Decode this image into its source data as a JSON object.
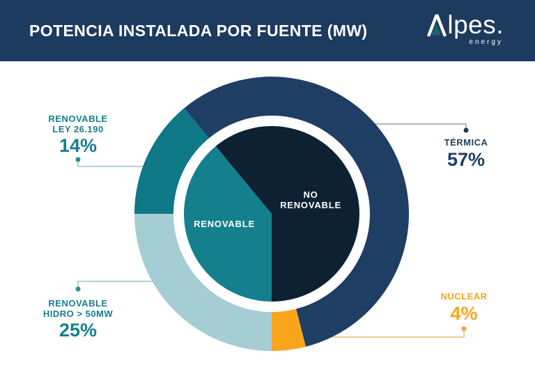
{
  "header": {
    "title": "POTENCIA INSTALADA POR FUENTE (MW)",
    "logo": {
      "brand": "Alpes.",
      "brand_rest": "lpes.",
      "tagline": "energy"
    }
  },
  "chart_data": {
    "type": "pie",
    "variant": "donut_with_inner_pie",
    "title": "POTENCIA INSTALADA POR FUENTE (MW)",
    "start_angle_deg": 180,
    "direction": "clockwise",
    "outer_ring": [
      {
        "label": "RENOVABLE HIDRO > 50MW",
        "value": 25,
        "color": "#a5cdd4"
      },
      {
        "label": "RENOVABLE LEY 26.190",
        "value": 14,
        "color": "#0e7887"
      },
      {
        "label": "TÉRMICA",
        "value": 57,
        "color": "#1e3e64"
      },
      {
        "label": "NUCLEAR",
        "value": 4,
        "color": "#f9a51c"
      }
    ],
    "inner_pie": [
      {
        "label": "RENOVABLE",
        "value": 39,
        "color": "#15808d"
      },
      {
        "label": "NO RENOVABLE",
        "value": 61,
        "color": "#0d2133"
      }
    ]
  },
  "callouts": {
    "ley": {
      "line1": "RENOVABLE",
      "line2": "LEY 26.190",
      "pct": "14%"
    },
    "termica": {
      "line1": "TÉRMICA",
      "pct": "57%"
    },
    "hidro": {
      "line1": "RENOVABLE",
      "line2": "HIDRO > 50MW",
      "pct": "25%"
    },
    "nuclear": {
      "line1": "NUCLEAR",
      "pct": "4%"
    }
  },
  "inner_labels": {
    "renovable": "RENOVABLE",
    "no_renovable": [
      "NO",
      "RENOVABLE"
    ]
  },
  "connector_colors": {
    "teal": {
      "line": "#a7cdd2",
      "dot": "#2b8b98"
    },
    "gray": {
      "line": "#a4adb4",
      "dot": "#1d3a5f"
    },
    "orange": {
      "line": "#f0c488",
      "dot": "#f2a735"
    }
  }
}
